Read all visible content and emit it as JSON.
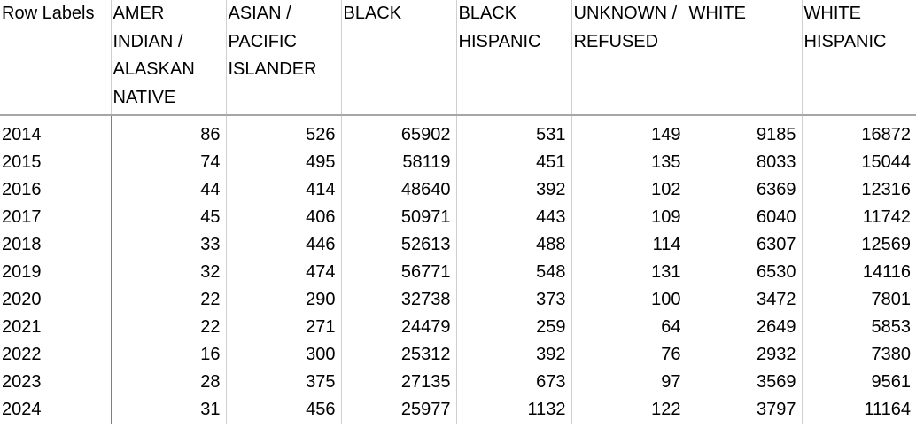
{
  "table": {
    "row_labels_header": "Row Labels",
    "columns": [
      "AMER INDIAN / ALASKAN NATIVE",
      "ASIAN / PACIFIC ISLANDER",
      "BLACK",
      "BLACK HISPANIC",
      "UNKNOWN / REFUSED",
      "WHITE",
      "WHITE HISPANIC"
    ],
    "rows": [
      {
        "label": "2014",
        "values": [
          "86",
          "526",
          "65902",
          "531",
          "149",
          "9185",
          "16872"
        ]
      },
      {
        "label": "2015",
        "values": [
          "74",
          "495",
          "58119",
          "451",
          "135",
          "8033",
          "15044"
        ]
      },
      {
        "label": "2016",
        "values": [
          "44",
          "414",
          "48640",
          "392",
          "102",
          "6369",
          "12316"
        ]
      },
      {
        "label": "2017",
        "values": [
          "45",
          "406",
          "50971",
          "443",
          "109",
          "6040",
          "11742"
        ]
      },
      {
        "label": "2018",
        "values": [
          "33",
          "446",
          "52613",
          "488",
          "114",
          "6307",
          "12569"
        ]
      },
      {
        "label": "2019",
        "values": [
          "32",
          "474",
          "56771",
          "548",
          "131",
          "6530",
          "14116"
        ]
      },
      {
        "label": "2020",
        "values": [
          "22",
          "290",
          "32738",
          "373",
          "100",
          "3472",
          "7801"
        ]
      },
      {
        "label": "2021",
        "values": [
          "22",
          "271",
          "24479",
          "259",
          "64",
          "2649",
          "5853"
        ]
      },
      {
        "label": "2022",
        "values": [
          "16",
          "300",
          "25312",
          "392",
          "76",
          "2932",
          "7380"
        ]
      },
      {
        "label": "2023",
        "values": [
          "28",
          "375",
          "27135",
          "673",
          "97",
          "3569",
          "9561"
        ]
      },
      {
        "label": "2024",
        "values": [
          "31",
          "456",
          "25977",
          "1132",
          "122",
          "3797",
          "11164"
        ]
      }
    ]
  }
}
